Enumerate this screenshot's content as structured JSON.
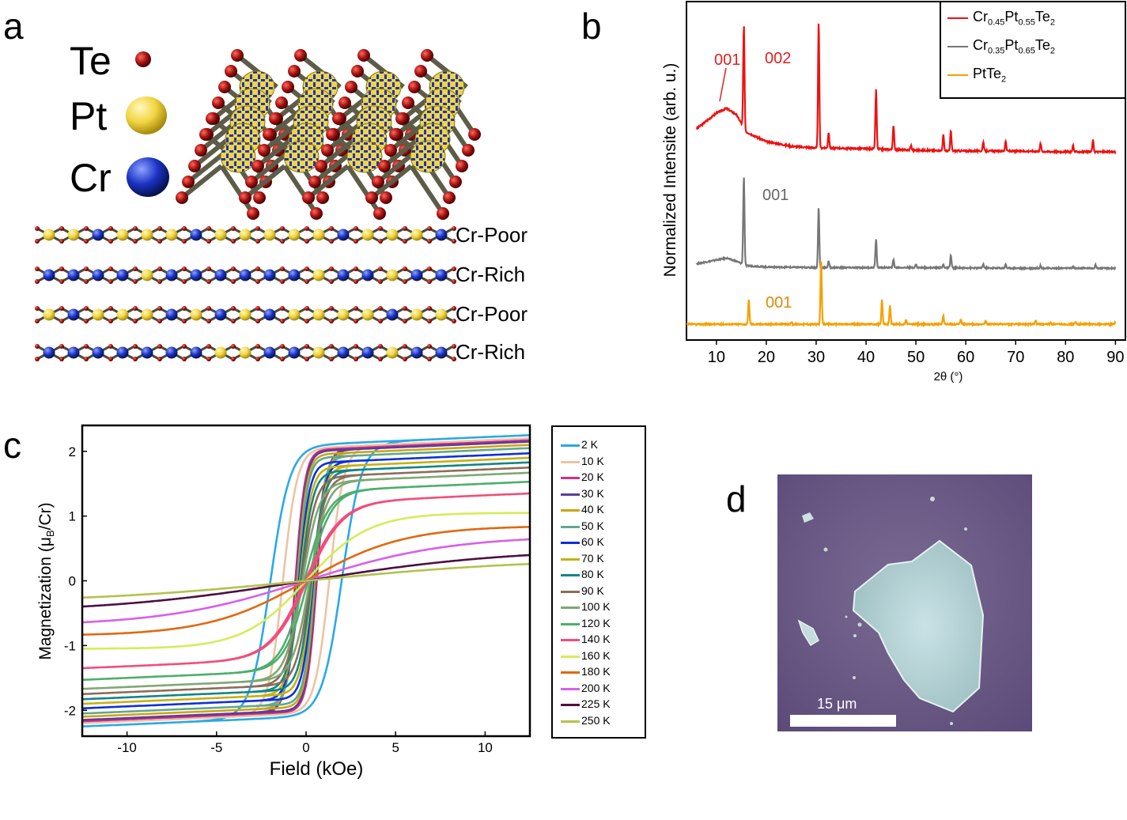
{
  "panels": {
    "a": "a",
    "b": "b",
    "c": "c",
    "d": "d"
  },
  "panel_a": {
    "elements": [
      {
        "label": "Te",
        "color": "#8b1a1a"
      },
      {
        "label": "Pt",
        "color": "#f2d84a"
      },
      {
        "label": "Cr",
        "color": "#1733b8"
      }
    ],
    "layers": [
      "Cr-Poor",
      "Cr-Rich",
      "Cr-Poor",
      "Cr-Rich"
    ]
  },
  "panel_b": {
    "ylabel": "Normalized Intensite (arb. u.)",
    "xlabel": "2θ (°)",
    "legend": [
      {
        "name": "Cr",
        "sub1": "0.45",
        "mid": "Pt",
        "sub2": "0.55",
        "tail": "Te",
        "sub3": "2",
        "color": "#ee1111"
      },
      {
        "name": "Cr",
        "sub1": "0.35",
        "mid": "Pt",
        "sub2": "0.65",
        "tail": "Te",
        "sub3": "2",
        "color": "#777777"
      },
      {
        "name": "PtTe",
        "sub1": "",
        "mid": "",
        "sub2": "",
        "tail": "",
        "sub3": "2",
        "color": "#f5a000"
      }
    ],
    "annotations": {
      "red_001": "001",
      "red_002": "002",
      "gray_001": "001",
      "orange_001": "001"
    }
  },
  "chart_data": [
    {
      "type": "line",
      "title": "",
      "xlabel": "2θ (°)",
      "ylabel": "Normalized Intensite (arb. u.)",
      "xlim": [
        4,
        92
      ],
      "x_ticks": [
        10,
        20,
        30,
        40,
        50,
        60,
        70,
        80,
        90
      ],
      "series": [
        {
          "name": "Cr0.45Pt0.55Te2",
          "color": "#ee1111",
          "offset": 2.0,
          "baseline": [
            [
              6,
              0.32
            ],
            [
              8,
              0.42
            ],
            [
              10,
              0.52
            ],
            [
              12,
              0.58
            ],
            [
              14,
              0.5
            ],
            [
              16,
              0.28
            ],
            [
              20,
              0.16
            ],
            [
              25,
              0.1
            ],
            [
              30,
              0.08
            ],
            [
              40,
              0.07
            ],
            [
              50,
              0.05
            ],
            [
              60,
              0.04
            ],
            [
              70,
              0.04
            ],
            [
              80,
              0.03
            ],
            [
              90,
              0.03
            ]
          ],
          "peaks": [
            [
              15.5,
              1.3
            ],
            [
              30.5,
              1.6
            ],
            [
              32.5,
              0.2
            ],
            [
              42.0,
              0.75
            ],
            [
              45.5,
              0.3
            ],
            [
              49,
              0.06
            ],
            [
              55.5,
              0.2
            ],
            [
              57,
              0.25
            ],
            [
              63.5,
              0.12
            ],
            [
              68,
              0.12
            ],
            [
              75,
              0.1
            ],
            [
              81.5,
              0.08
            ],
            [
              85.5,
              0.15
            ]
          ]
        },
        {
          "name": "Cr0.35Pt0.65Te2",
          "color": "#777777",
          "offset": 1.0,
          "baseline": [
            [
              6,
              0.08
            ],
            [
              10,
              0.14
            ],
            [
              12,
              0.17
            ],
            [
              14,
              0.12
            ],
            [
              16,
              0.05
            ],
            [
              20,
              0.03
            ],
            [
              30,
              0.02
            ],
            [
              50,
              0.02
            ],
            [
              70,
              0.01
            ],
            [
              90,
              0.01
            ]
          ],
          "peaks": [
            [
              15.5,
              1.4
            ],
            [
              30.5,
              0.95
            ],
            [
              32.5,
              0.1
            ],
            [
              42.0,
              0.45
            ],
            [
              45.5,
              0.12
            ],
            [
              50,
              0.05
            ],
            [
              55.5,
              0.05
            ],
            [
              57,
              0.2
            ],
            [
              63.5,
              0.06
            ],
            [
              68,
              0.06
            ],
            [
              75,
              0.04
            ],
            [
              81.5,
              0.03
            ],
            [
              86,
              0.05
            ]
          ]
        },
        {
          "name": "PtTe2",
          "color": "#f5a000",
          "offset": 0.0,
          "baseline": [
            [
              4,
              0
            ],
            [
              90,
              0
            ]
          ],
          "peaks": [
            [
              16.5,
              0.35
            ],
            [
              25,
              0.03
            ],
            [
              31,
              0.93
            ],
            [
              43.2,
              0.35
            ],
            [
              44.8,
              0.27
            ],
            [
              48,
              0.06
            ],
            [
              55.5,
              0.12
            ],
            [
              59,
              0.06
            ],
            [
              64,
              0.05
            ],
            [
              74,
              0.05
            ],
            [
              77,
              0.02
            ],
            [
              82,
              0.03
            ],
            [
              90,
              0.03
            ]
          ]
        }
      ]
    },
    {
      "type": "line",
      "title": "",
      "xlabel": "Field (kOe)",
      "ylabel": "Magnetization (μB/Cr)",
      "xlim": [
        -12.5,
        12.5
      ],
      "ylim": [
        -2.4,
        2.4
      ],
      "x_ticks": [
        -10,
        -5,
        0,
        5,
        10
      ],
      "y_ticks": [
        -2,
        -1,
        0,
        1,
        2
      ],
      "series": [
        {
          "name": "2 K",
          "color": "#2aa9e5",
          "ms": 2.1,
          "hc": 2.0,
          "w": 1.1
        },
        {
          "name": "10 K",
          "color": "#ebc4a3",
          "ms": 2.05,
          "hc": 1.3,
          "w": 0.8
        },
        {
          "name": "20 K",
          "color": "#d42f85",
          "ms": 2.02,
          "hc": 0.6,
          "w": 0.55
        },
        {
          "name": "30 K",
          "color": "#5b3d99",
          "ms": 2.0,
          "hc": 0.55,
          "w": 0.55
        },
        {
          "name": "40 K",
          "color": "#cfa315",
          "ms": 1.95,
          "hc": 0.5,
          "w": 0.55
        },
        {
          "name": "50 K",
          "color": "#5ea88f",
          "ms": 1.9,
          "hc": 0.45,
          "w": 0.55
        },
        {
          "name": "60 K",
          "color": "#1030d8",
          "ms": 1.82,
          "hc": 0.4,
          "w": 0.6
        },
        {
          "name": "70 K",
          "color": "#c4b213",
          "ms": 1.75,
          "hc": 0.35,
          "w": 0.65
        },
        {
          "name": "80 K",
          "color": "#138585",
          "ms": 1.68,
          "hc": 0.3,
          "w": 0.7
        },
        {
          "name": "90 K",
          "color": "#8c6d5a",
          "ms": 1.6,
          "hc": 0.25,
          "w": 0.8
        },
        {
          "name": "100 K",
          "color": "#7fa872",
          "ms": 1.52,
          "hc": 0.2,
          "w": 0.95
        },
        {
          "name": "120 K",
          "color": "#4dae6c",
          "ms": 1.38,
          "hc": 0.1,
          "w": 1.3
        },
        {
          "name": "140 K",
          "color": "#f24d78",
          "ms": 1.2,
          "hc": 0.05,
          "w": 2.0
        },
        {
          "name": "160 K",
          "color": "#d7eb5a",
          "ms": 1.05,
          "hc": 0,
          "w": 3.5
        },
        {
          "name": "180 K",
          "color": "#e0680f",
          "ms": 0.85,
          "hc": 0,
          "w": 5.5
        },
        {
          "name": "200 K",
          "color": "#d760e8",
          "ms": 0.7,
          "hc": 0,
          "w": 8.0
        },
        {
          "name": "225 K",
          "color": "#4d1040",
          "ms": 0.5,
          "hc": 0,
          "w": 11.5
        },
        {
          "name": "250 K",
          "color": "#b3c24d",
          "ms": 0.35,
          "hc": 0,
          "w": 13.0
        }
      ]
    }
  ],
  "panel_c_ylabel_main": "Magnetization (μ",
  "panel_c_ylabel_sub": "B",
  "panel_c_ylabel_tail": "/Cr)",
  "panel_d": {
    "scale_label": "15 μm"
  }
}
